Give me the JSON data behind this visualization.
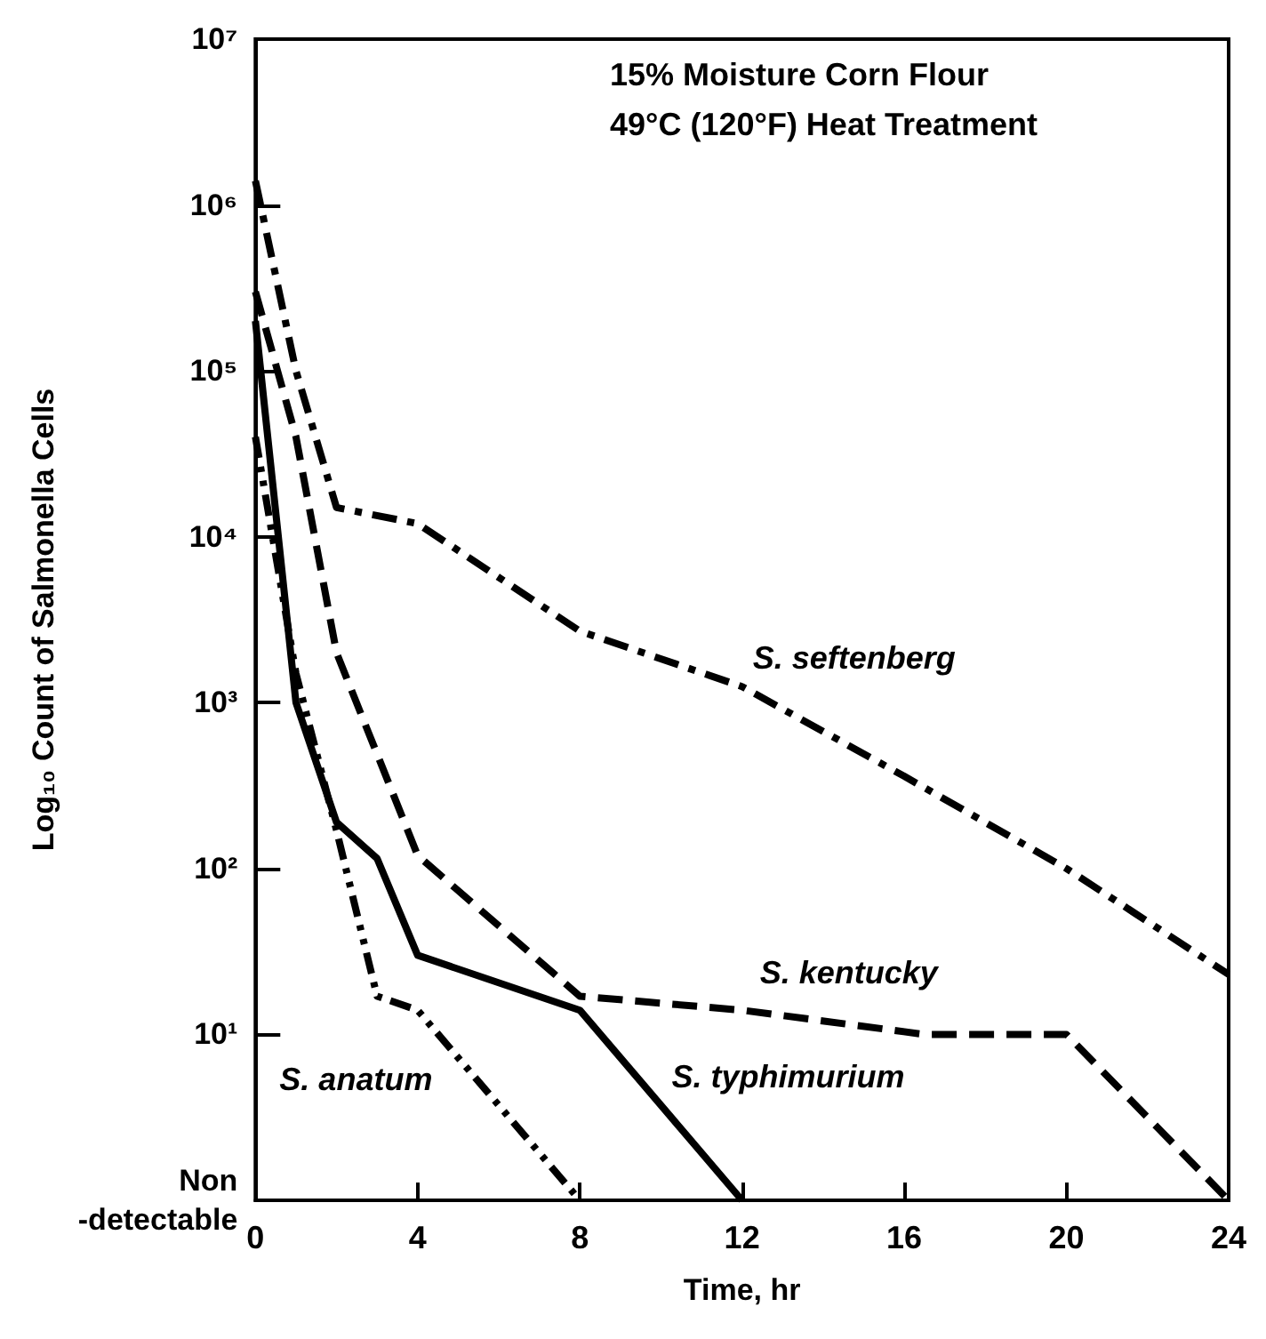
{
  "chart_data": {
    "type": "line",
    "title": "15% Moisture Corn Flour",
    "subtitle": "49°C (120°F) Heat Treatment",
    "xlabel": "Time, hr",
    "ylabel": "Log₁₀ Count of Salmonella Cells",
    "log": "y",
    "grid": false,
    "legend": false,
    "marker": "none",
    "xlim": [
      0,
      24
    ],
    "xticks": [
      0,
      4,
      8,
      12,
      16,
      20,
      24
    ],
    "ylim": [
      1,
      10000000
    ],
    "yticks": [
      {
        "value": 1,
        "label": "Non\n-detectable"
      },
      {
        "value": 10,
        "label": "10¹"
      },
      {
        "value": 100,
        "label": "10²"
      },
      {
        "value": 1000,
        "label": "10³"
      },
      {
        "value": 10000,
        "label": "10⁴"
      },
      {
        "value": 100000,
        "label": "10⁵"
      },
      {
        "value": 1000000,
        "label": "10⁶"
      },
      {
        "value": 10000000,
        "label": "10⁷"
      }
    ],
    "series": [
      {
        "name": "S. seftenberg",
        "color": "#000000",
        "line_style": "dashdot",
        "x": [
          0,
          1,
          2,
          4,
          8,
          12,
          16,
          20,
          24
        ],
        "values": [
          1400000,
          100000,
          15000,
          12000,
          2700,
          1250,
          360,
          100,
          23
        ]
      },
      {
        "name": "S. kentucky",
        "color": "#000000",
        "line_style": "dashed",
        "x": [
          0,
          1,
          2,
          4,
          8,
          12,
          16.5,
          20,
          24
        ],
        "values": [
          300000,
          40000,
          2000,
          120,
          17,
          14,
          10,
          10,
          1
        ]
      },
      {
        "name": "S. typhimurium",
        "color": "#000000",
        "line_style": "solid",
        "x": [
          0,
          1,
          2,
          3,
          4,
          8,
          12
        ],
        "values": [
          200000,
          1000,
          190,
          115,
          30,
          14,
          1
        ]
      },
      {
        "name": "S. anatum",
        "color": "#000000",
        "line_style": "dashdotdot",
        "x": [
          0,
          1,
          2,
          3,
          4,
          8
        ],
        "values": [
          40000,
          1500,
          170,
          17,
          14,
          1
        ]
      }
    ]
  }
}
